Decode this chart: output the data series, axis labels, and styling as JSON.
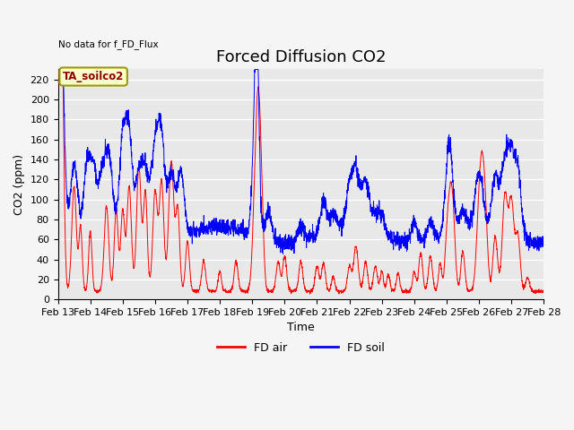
{
  "title": "Forced Diffusion CO2",
  "xlabel": "Time",
  "ylabel": "CO2 (ppm)",
  "top_left_text": "No data for f_FD_Flux",
  "annotation_text": "TA_soilco2",
  "ylim": [
    0,
    230
  ],
  "yticks": [
    0,
    20,
    40,
    60,
    80,
    100,
    120,
    140,
    160,
    180,
    200,
    220
  ],
  "xtick_labels": [
    "Feb 13",
    "Feb 14",
    "Feb 15",
    "Feb 16",
    "Feb 17",
    "Feb 18",
    "Feb 19",
    "Feb 20",
    "Feb 21",
    "Feb 22",
    "Feb 23",
    "Feb 24",
    "Feb 25",
    "Feb 26",
    "Feb 27",
    "Feb 28"
  ],
  "legend_entries": [
    "FD air",
    "FD soil"
  ],
  "color_air": "#ff0000",
  "color_soil": "#0000ff",
  "background_color": "#e8e8e8",
  "grid_color": "#ffffff",
  "title_fontsize": 13,
  "axis_label_fontsize": 9,
  "tick_fontsize": 8,
  "n_days": 15
}
